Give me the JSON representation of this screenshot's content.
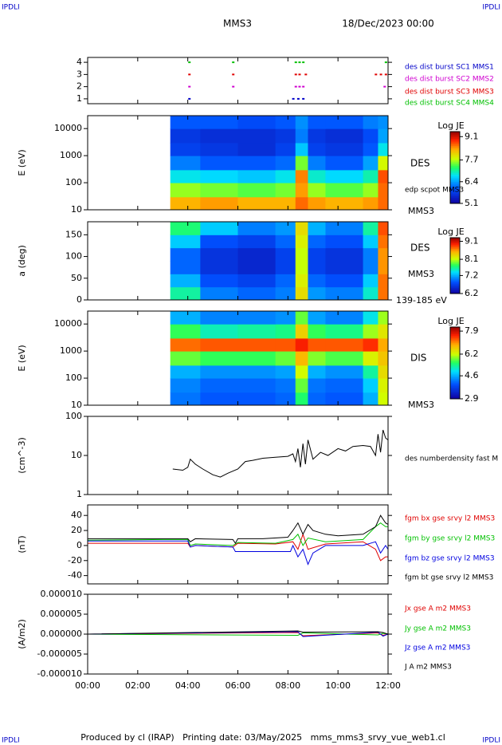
{
  "header": {
    "corner_labels": [
      "IPDLI",
      "IPDLI",
      "IPDLI",
      "IPDLI"
    ],
    "spacecraft": "MMS3",
    "date": "18/Dec/2023 00:00"
  },
  "footer": "Produced by cl (IRAP)   Printing date: 03/May/2025   mms_mms3_srvy_vue_web1.cl",
  "x_axis": {
    "xlim": [
      0,
      12
    ],
    "xticks": [
      {
        "value": 0,
        "label": "00:00"
      },
      {
        "value": 2,
        "label": "02:00"
      },
      {
        "value": 4,
        "label": "04:00"
      },
      {
        "value": 6,
        "label": "06:00"
      },
      {
        "value": 8,
        "label": "08:00"
      },
      {
        "value": 10,
        "label": "10:00"
      },
      {
        "value": 12,
        "label": "12:00"
      }
    ]
  },
  "chart_data": [
    {
      "type": "event",
      "ylim": [
        0.6,
        4.4
      ],
      "yticks": [
        1,
        2,
        3,
        4
      ],
      "series": [
        {
          "name": "des dist burst SC1 MMS1",
          "color": "#0000c8",
          "x": [
            4.05,
            8.2,
            8.4,
            8.6
          ],
          "values": [
            1,
            1,
            1,
            1
          ]
        },
        {
          "name": "des dist burst SC2 MMS2",
          "color": "#d000d0",
          "x": [
            4.05,
            5.8,
            8.3,
            8.45,
            8.6,
            11.85
          ],
          "values": [
            2,
            2,
            2,
            2,
            2,
            2
          ]
        },
        {
          "name": "des dist burst SC3 MMS3",
          "color": "#e00000",
          "x": [
            4.05,
            5.8,
            8.3,
            8.45,
            8.7,
            11.5,
            11.7,
            11.9
          ],
          "values": [
            3,
            3,
            3,
            3,
            3,
            3,
            3,
            3
          ]
        },
        {
          "name": "des dist burst SC4 MMS4",
          "color": "#00c000",
          "x": [
            4.05,
            5.8,
            8.3,
            8.45,
            8.6,
            11.9
          ],
          "values": [
            4,
            4,
            4,
            4,
            4,
            4
          ]
        }
      ]
    },
    {
      "type": "heatmap",
      "ylabel": "E (eV)",
      "log": true,
      "ylim": [
        10,
        30000
      ],
      "yticks": [
        10,
        100,
        1000,
        10000
      ],
      "side_labels": [
        "DES",
        "edp scpot MMS3",
        "MMS3"
      ],
      "colorbar": {
        "title": "Log JE",
        "zlim": [
          5.1,
          9.4
        ],
        "ticks": [
          9.1,
          7.7,
          6.4,
          5.1
        ]
      },
      "x": [
        3.3,
        4.5,
        6,
        7.5,
        8.3,
        8.8,
        9.5,
        11,
        11.6,
        12
      ],
      "y": [
        10,
        30,
        100,
        300,
        1000,
        3000,
        10000,
        30000
      ],
      "z": [
        [
          8.3,
          8.4,
          8.3,
          8.3,
          8.6,
          8.4,
          8.3,
          8.4,
          8.6
        ],
        [
          7.6,
          7.5,
          7.4,
          7.5,
          8.4,
          7.6,
          7.4,
          7.6,
          8.6
        ],
        [
          6.8,
          6.7,
          6.6,
          6.8,
          8.5,
          6.9,
          6.7,
          7.0,
          8.7
        ],
        [
          6.2,
          6.0,
          6.0,
          6.1,
          7.5,
          6.2,
          6.0,
          6.4,
          7.8
        ],
        [
          5.8,
          5.7,
          5.6,
          5.8,
          6.6,
          5.8,
          5.7,
          6.0,
          6.8
        ],
        [
          5.7,
          5.6,
          5.6,
          5.7,
          6.2,
          5.7,
          5.6,
          5.9,
          6.4
        ],
        [
          6.0,
          6.0,
          5.9,
          6.0,
          6.3,
          6.0,
          6.0,
          6.2,
          6.3
        ]
      ]
    },
    {
      "type": "heatmap",
      "ylabel": "a (deg)",
      "log": false,
      "ylim": [
        0,
        180
      ],
      "yticks": [
        0,
        50,
        100,
        150
      ],
      "side_labels": [
        "DES",
        "MMS3",
        "139-185 eV"
      ],
      "colorbar": {
        "title": "Log JE",
        "zlim": [
          6.2,
          9.3
        ],
        "ticks": [
          9.1,
          8.1,
          7.2,
          6.2
        ]
      },
      "x": [
        3.3,
        4.5,
        6,
        7.5,
        8.3,
        8.8,
        9.5,
        11,
        11.6,
        12
      ],
      "y": [
        0,
        30,
        60,
        90,
        120,
        150,
        180
      ],
      "z": [
        [
          7.6,
          7.0,
          6.9,
          7.0,
          8.3,
          7.1,
          7.0,
          7.5,
          8.7
        ],
        [
          7.2,
          6.8,
          6.7,
          6.9,
          8.2,
          6.9,
          6.8,
          7.3,
          8.7
        ],
        [
          6.9,
          6.6,
          6.5,
          6.7,
          8.1,
          6.7,
          6.6,
          7.0,
          8.6
        ],
        [
          6.9,
          6.6,
          6.5,
          6.7,
          8.1,
          6.7,
          6.6,
          7.0,
          8.6
        ],
        [
          7.3,
          6.8,
          6.7,
          6.9,
          8.2,
          6.9,
          6.8,
          7.3,
          8.7
        ],
        [
          7.7,
          7.3,
          7.0,
          7.1,
          8.3,
          7.2,
          7.0,
          7.6,
          8.8
        ]
      ]
    },
    {
      "type": "heatmap",
      "ylabel": "E (eV)",
      "log": true,
      "ylim": [
        10,
        30000
      ],
      "yticks": [
        10,
        100,
        1000,
        10000
      ],
      "side_labels": [
        "DIS",
        "MMS3"
      ],
      "colorbar": {
        "title": "Log JE",
        "zlim": [
          2.9,
          8.2
        ],
        "ticks": [
          7.9,
          6.2,
          4.6,
          2.9
        ]
      },
      "x": [
        3.3,
        4.5,
        6,
        7.5,
        8.3,
        8.8,
        9.5,
        11,
        11.6,
        12
      ],
      "y": [
        10,
        30,
        100,
        300,
        1000,
        3000,
        10000,
        30000
      ],
      "z": [
        [
          4.2,
          4.0,
          4.0,
          4.1,
          5.5,
          4.1,
          4.0,
          4.6,
          6.2
        ],
        [
          4.3,
          4.1,
          4.1,
          4.2,
          5.8,
          4.2,
          4.1,
          4.8,
          6.3
        ],
        [
          4.6,
          4.4,
          4.4,
          4.5,
          6.2,
          4.6,
          4.4,
          5.3,
          6.5
        ],
        [
          5.8,
          5.6,
          5.6,
          5.8,
          6.8,
          5.9,
          5.7,
          6.3,
          6.7
        ],
        [
          7.2,
          7.3,
          7.3,
          7.3,
          7.6,
          7.3,
          7.3,
          7.5,
          6.9
        ],
        [
          5.6,
          5.2,
          5.3,
          5.4,
          6.6,
          5.6,
          5.4,
          6.0,
          6.4
        ],
        [
          4.6,
          4.3,
          4.3,
          4.4,
          5.8,
          4.5,
          4.3,
          5.0,
          6.0
        ]
      ]
    },
    {
      "type": "line",
      "ylabel": "(cm^-3)",
      "log": true,
      "ylim": [
        1,
        100
      ],
      "yticks": [
        1,
        10,
        100
      ],
      "series": [
        {
          "name": "des numberdensity fast M",
          "color": "#000000",
          "x": [
            3.4,
            3.8,
            4.0,
            4.1,
            4.3,
            4.6,
            5.0,
            5.3,
            5.6,
            6.0,
            6.3,
            6.6,
            7.0,
            7.5,
            8.0,
            8.2,
            8.3,
            8.4,
            8.5,
            8.6,
            8.7,
            8.8,
            9.0,
            9.3,
            9.6,
            10.0,
            10.3,
            10.6,
            11.0,
            11.3,
            11.5,
            11.6,
            11.7,
            11.8,
            11.9,
            12.0
          ],
          "values": [
            4.5,
            4.2,
            5.0,
            8,
            6,
            4.5,
            3.2,
            2.8,
            3.5,
            4.5,
            7,
            7.5,
            8.5,
            9,
            9.5,
            11,
            7,
            15,
            5,
            20,
            6,
            25,
            8,
            12,
            10,
            15,
            13,
            17,
            18,
            17,
            10,
            35,
            12,
            45,
            28,
            25
          ]
        }
      ]
    },
    {
      "type": "line",
      "ylabel": "(nT)",
      "log": false,
      "ylim": [
        -51,
        54
      ],
      "yticks": [
        -40,
        -20,
        0,
        20,
        40
      ],
      "series": [
        {
          "name": "fgm bx gse srvy l2 MMS3",
          "color": "#e00000",
          "x": [
            0,
            3,
            4.0,
            4.1,
            4.3,
            5.8,
            6.0,
            7.5,
            8.2,
            8.4,
            8.6,
            8.8,
            9.5,
            11,
            11.5,
            11.7,
            11.9,
            12
          ],
          "values": [
            3,
            3,
            3,
            -2,
            0,
            -2,
            3,
            2,
            5,
            -5,
            15,
            -5,
            2,
            5,
            -5,
            -20,
            -15,
            -15
          ]
        },
        {
          "name": "fgm by gse srvy l2 MMS3",
          "color": "#00c000",
          "x": [
            0,
            3,
            4.0,
            4.1,
            4.3,
            5.8,
            6.0,
            7.5,
            8.2,
            8.4,
            8.6,
            8.8,
            9.5,
            11,
            11.5,
            11.7,
            11.9,
            12
          ],
          "values": [
            7,
            8,
            8,
            0,
            2,
            0,
            4,
            3,
            8,
            15,
            0,
            10,
            5,
            8,
            25,
            30,
            25,
            25
          ]
        },
        {
          "name": "fgm bz gse srvy l2 MMS3",
          "color": "#0000e0",
          "x": [
            0,
            3,
            4.0,
            4.1,
            4.3,
            5.8,
            5.9,
            7.5,
            8.1,
            8.2,
            8.4,
            8.6,
            8.8,
            9.0,
            9.5,
            11,
            11.5,
            11.7,
            11.9,
            12
          ],
          "values": [
            6,
            6,
            6,
            -2,
            0,
            -2,
            -8,
            -8,
            -8,
            0,
            -15,
            -5,
            -25,
            -10,
            0,
            0,
            5,
            -10,
            0,
            -5
          ]
        },
        {
          "name": "fgm bt gse srvy l2 MMS3",
          "color": "#000000",
          "x": [
            0,
            3,
            4.0,
            4.1,
            4.3,
            5.8,
            5.9,
            6.0,
            7.0,
            8.0,
            8.2,
            8.4,
            8.6,
            8.8,
            9.0,
            9.5,
            10,
            11,
            11.5,
            11.7,
            11.9,
            12
          ],
          "values": [
            9,
            9,
            9,
            5,
            9,
            8,
            3,
            9,
            9,
            11,
            20,
            30,
            15,
            28,
            20,
            15,
            13,
            15,
            25,
            40,
            30,
            28
          ]
        }
      ]
    },
    {
      "type": "line",
      "ylabel": "(A/m2)",
      "log": false,
      "ylim": [
        -1e-05,
        1e-05
      ],
      "yticks": [
        {
          "value": 1e-05,
          "label": "0.000010"
        },
        {
          "value": 5e-06,
          "label": "0.000005"
        },
        {
          "value": 0,
          "label": "0.000000"
        },
        {
          "value": -5e-06,
          "label": "-0.000005"
        },
        {
          "value": -1e-05,
          "label": "-0.000010"
        }
      ],
      "series": [
        {
          "name": "Jx gse A m2 MMS3",
          "color": "#e00000",
          "x": [
            0,
            8.4,
            8.6,
            11.6,
            11.8,
            12
          ],
          "values": [
            0,
            4e-07,
            -4e-07,
            3e-07,
            -3e-07,
            0
          ]
        },
        {
          "name": "Jy gse A m2 MMS3",
          "color": "#00c000",
          "x": [
            0,
            8.4,
            8.6,
            11.6,
            11.8,
            12
          ],
          "values": [
            0,
            -3e-07,
            3e-07,
            -2e-07,
            2e-07,
            0
          ]
        },
        {
          "name": "Jz gse A m2 MMS3",
          "color": "#0000e0",
          "x": [
            0,
            8.4,
            8.6,
            11.6,
            11.8,
            12
          ],
          "values": [
            0,
            6e-07,
            -6e-07,
            5e-07,
            -5e-07,
            0
          ]
        },
        {
          "name": "J A m2 MMS3",
          "color": "#000000",
          "x": [
            0,
            8.4,
            8.6,
            11.6,
            11.8,
            12
          ],
          "values": [
            0,
            8e-07,
            5e-07,
            6e-07,
            4e-07,
            0
          ]
        }
      ]
    }
  ]
}
